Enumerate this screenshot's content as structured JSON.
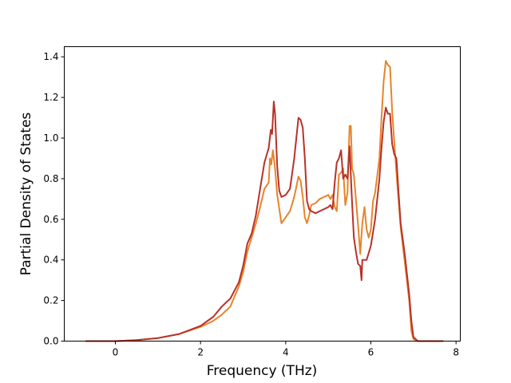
{
  "chart_data": {
    "type": "line",
    "title": "",
    "xlabel": "Frequency (THz)",
    "ylabel": "Partial Density of States",
    "xlim": [
      -1.2,
      8.1
    ],
    "ylim": [
      0.0,
      1.45
    ],
    "xticks": [
      0,
      2,
      4,
      6,
      8
    ],
    "yticks": [
      0.0,
      0.2,
      0.4,
      0.6,
      0.8,
      1.0,
      1.2,
      1.4
    ],
    "xtick_labels": [
      "0",
      "2",
      "4",
      "6",
      "8"
    ],
    "ytick_labels": [
      "0.0",
      "0.2",
      "0.4",
      "0.6",
      "0.8",
      "1.0",
      "1.2",
      "1.4"
    ],
    "grid": false,
    "series": [
      {
        "color": "#e8842a",
        "points": [
          [
            -0.7,
            0
          ],
          [
            0,
            0
          ],
          [
            0.5,
            0.005
          ],
          [
            1.0,
            0.015
          ],
          [
            1.5,
            0.035
          ],
          [
            2.0,
            0.07
          ],
          [
            2.3,
            0.1
          ],
          [
            2.5,
            0.13
          ],
          [
            2.7,
            0.17
          ],
          [
            2.9,
            0.27
          ],
          [
            3.0,
            0.34
          ],
          [
            3.1,
            0.44
          ],
          [
            3.2,
            0.51
          ],
          [
            3.3,
            0.58
          ],
          [
            3.4,
            0.66
          ],
          [
            3.5,
            0.75
          ],
          [
            3.6,
            0.78
          ],
          [
            3.63,
            0.9
          ],
          [
            3.66,
            0.87
          ],
          [
            3.7,
            0.94
          ],
          [
            3.75,
            0.85
          ],
          [
            3.8,
            0.72
          ],
          [
            3.9,
            0.58
          ],
          [
            4.0,
            0.61
          ],
          [
            4.1,
            0.64
          ],
          [
            4.2,
            0.71
          ],
          [
            4.3,
            0.81
          ],
          [
            4.35,
            0.79
          ],
          [
            4.4,
            0.71
          ],
          [
            4.45,
            0.61
          ],
          [
            4.5,
            0.58
          ],
          [
            4.55,
            0.62
          ],
          [
            4.6,
            0.67
          ],
          [
            4.7,
            0.68
          ],
          [
            4.8,
            0.7
          ],
          [
            4.9,
            0.71
          ],
          [
            5.0,
            0.72
          ],
          [
            5.05,
            0.7
          ],
          [
            5.1,
            0.72
          ],
          [
            5.15,
            0.66
          ],
          [
            5.2,
            0.64
          ],
          [
            5.25,
            0.82
          ],
          [
            5.3,
            0.83
          ],
          [
            5.35,
            0.85
          ],
          [
            5.4,
            0.67
          ],
          [
            5.45,
            0.73
          ],
          [
            5.5,
            1.06
          ],
          [
            5.53,
            1.06
          ],
          [
            5.56,
            0.85
          ],
          [
            5.6,
            0.82
          ],
          [
            5.7,
            0.57
          ],
          [
            5.75,
            0.43
          ],
          [
            5.8,
            0.58
          ],
          [
            5.85,
            0.66
          ],
          [
            5.9,
            0.55
          ],
          [
            5.95,
            0.51
          ],
          [
            6.0,
            0.55
          ],
          [
            6.05,
            0.69
          ],
          [
            6.1,
            0.73
          ],
          [
            6.2,
            0.9
          ],
          [
            6.25,
            1.1
          ],
          [
            6.3,
            1.28
          ],
          [
            6.35,
            1.38
          ],
          [
            6.4,
            1.36
          ],
          [
            6.45,
            1.35
          ],
          [
            6.5,
            1.13
          ],
          [
            6.55,
            0.98
          ],
          [
            6.6,
            0.83
          ],
          [
            6.7,
            0.56
          ],
          [
            6.8,
            0.38
          ],
          [
            6.9,
            0.2
          ],
          [
            6.95,
            0.05
          ],
          [
            7.0,
            0.01
          ],
          [
            7.1,
            0
          ],
          [
            7.7,
            0
          ]
        ]
      },
      {
        "color": "#b83228",
        "points": [
          [
            -0.7,
            0
          ],
          [
            0,
            0
          ],
          [
            0.5,
            0.005
          ],
          [
            1.0,
            0.015
          ],
          [
            1.5,
            0.035
          ],
          [
            2.0,
            0.075
          ],
          [
            2.3,
            0.12
          ],
          [
            2.5,
            0.17
          ],
          [
            2.7,
            0.21
          ],
          [
            2.9,
            0.29
          ],
          [
            3.0,
            0.37
          ],
          [
            3.1,
            0.48
          ],
          [
            3.2,
            0.53
          ],
          [
            3.3,
            0.62
          ],
          [
            3.4,
            0.75
          ],
          [
            3.5,
            0.88
          ],
          [
            3.6,
            0.95
          ],
          [
            3.65,
            1.04
          ],
          [
            3.68,
            1.02
          ],
          [
            3.72,
            1.18
          ],
          [
            3.75,
            1.12
          ],
          [
            3.8,
            0.86
          ],
          [
            3.85,
            0.74
          ],
          [
            3.9,
            0.71
          ],
          [
            4.0,
            0.72
          ],
          [
            4.1,
            0.75
          ],
          [
            4.2,
            0.9
          ],
          [
            4.3,
            1.1
          ],
          [
            4.35,
            1.09
          ],
          [
            4.4,
            1.05
          ],
          [
            4.45,
            0.9
          ],
          [
            4.5,
            0.69
          ],
          [
            4.55,
            0.65
          ],
          [
            4.6,
            0.64
          ],
          [
            4.7,
            0.63
          ],
          [
            4.8,
            0.64
          ],
          [
            4.9,
            0.65
          ],
          [
            5.0,
            0.66
          ],
          [
            5.05,
            0.67
          ],
          [
            5.1,
            0.65
          ],
          [
            5.15,
            0.78
          ],
          [
            5.2,
            0.88
          ],
          [
            5.25,
            0.9
          ],
          [
            5.3,
            0.94
          ],
          [
            5.35,
            0.8
          ],
          [
            5.4,
            0.82
          ],
          [
            5.45,
            0.8
          ],
          [
            5.5,
            0.96
          ],
          [
            5.55,
            0.72
          ],
          [
            5.6,
            0.51
          ],
          [
            5.65,
            0.44
          ],
          [
            5.7,
            0.38
          ],
          [
            5.75,
            0.37
          ],
          [
            5.78,
            0.3
          ],
          [
            5.8,
            0.4
          ],
          [
            5.9,
            0.4
          ],
          [
            6.0,
            0.47
          ],
          [
            6.1,
            0.6
          ],
          [
            6.2,
            0.8
          ],
          [
            6.25,
            0.95
          ],
          [
            6.3,
            1.08
          ],
          [
            6.35,
            1.15
          ],
          [
            6.4,
            1.12
          ],
          [
            6.45,
            1.12
          ],
          [
            6.5,
            0.97
          ],
          [
            6.55,
            0.92
          ],
          [
            6.6,
            0.9
          ],
          [
            6.65,
            0.73
          ],
          [
            6.7,
            0.58
          ],
          [
            6.8,
            0.42
          ],
          [
            6.9,
            0.23
          ],
          [
            6.95,
            0.1
          ],
          [
            7.0,
            0.02
          ],
          [
            7.1,
            0
          ],
          [
            7.7,
            0
          ]
        ]
      }
    ]
  }
}
